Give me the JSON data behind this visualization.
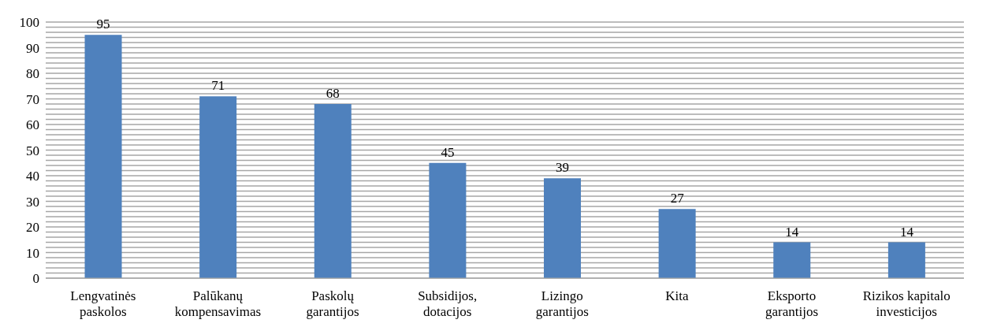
{
  "chart_data": {
    "type": "bar",
    "categories": [
      "Lengvatinės paskolos",
      "Palūkanų kompensavimas",
      "Paskolų garantijos",
      "Subsidijos, dotacijos",
      "Lizingo garantijos",
      "Kita",
      "Eksporto garantijos",
      "Rizikos kapitalo investicijos"
    ],
    "values": [
      95,
      71,
      68,
      45,
      39,
      27,
      14,
      14
    ],
    "color": "#4f81bd",
    "ylim": [
      0,
      100
    ],
    "yticks": [
      0,
      {
        "value": 2,
        "label": null
      },
      {
        "value": 4,
        "label": null
      },
      {
        "value": 6,
        "label": null
      },
      {
        "value": 8,
        "label": null
      },
      10,
      {
        "value": 12,
        "label": null
      },
      {
        "value": 14,
        "label": null
      },
      {
        "value": 16,
        "label": null
      },
      {
        "value": 18,
        "label": null
      },
      20,
      {
        "value": 22,
        "label": null
      },
      {
        "value": 24,
        "label": null
      },
      {
        "value": 26,
        "label": null
      },
      {
        "value": 28,
        "label": null
      },
      30,
      {
        "value": 32,
        "label": null
      },
      {
        "value": 34,
        "label": null
      },
      {
        "value": 36,
        "label": null
      },
      {
        "value": 38,
        "label": null
      },
      40,
      {
        "value": 42,
        "label": null
      },
      {
        "value": 44,
        "label": null
      },
      {
        "value": 46,
        "label": null
      },
      {
        "value": 48,
        "label": null
      },
      50,
      {
        "value": 52,
        "label": null
      },
      {
        "value": 54,
        "label": null
      },
      {
        "value": 56,
        "label": null
      },
      {
        "value": 58,
        "label": null
      },
      60,
      {
        "value": 62,
        "label": null
      },
      {
        "value": 64,
        "label": null
      },
      {
        "value": 66,
        "label": null
      },
      {
        "value": 68,
        "label": null
      },
      70,
      {
        "value": 72,
        "label": null
      },
      {
        "value": 74,
        "label": null
      },
      {
        "value": 76,
        "label": null
      },
      {
        "value": 78,
        "label": null
      },
      80,
      {
        "value": 82,
        "label": null
      },
      {
        "value": 84,
        "label": null
      },
      {
        "value": 86,
        "label": null
      },
      {
        "value": 88,
        "label": null
      },
      90,
      {
        "value": 92,
        "label": null
      },
      {
        "value": 94,
        "label": null
      },
      {
        "value": 96,
        "label": null
      },
      {
        "value": 98,
        "label": null
      },
      100
    ],
    "grid": "y",
    "data_labels": true
  }
}
